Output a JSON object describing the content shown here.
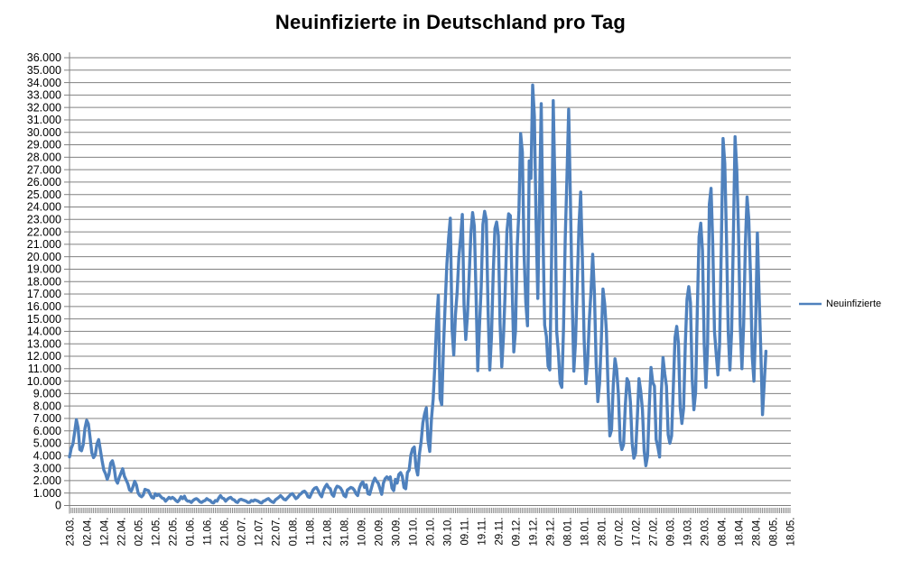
{
  "title": "Neuinfizierte in Deutschland pro Tag",
  "legend": {
    "series_label": "Neuinfizierte"
  },
  "colors": {
    "series": "#4F81BD",
    "gridline": "#808080",
    "axis": "#808080",
    "tick": "#808080",
    "text": "#000000",
    "background": "#FFFFFF"
  },
  "chart_data": {
    "type": "line",
    "title": "Neuinfizierte in Deutschland pro Tag",
    "legend_position": "right",
    "grid": "horizontal",
    "ylim": [
      0,
      36000
    ],
    "y_step": 1000,
    "y_tick_labels": [
      "0",
      "1.000",
      "2.000",
      "3.000",
      "4.000",
      "5.000",
      "6.000",
      "7.000",
      "8.000",
      "9.000",
      "10.000",
      "11.000",
      "12.000",
      "13.000",
      "14.000",
      "15.000",
      "16.000",
      "17.000",
      "18.000",
      "19.000",
      "20.000",
      "21.000",
      "22.000",
      "23.000",
      "24.000",
      "25.000",
      "26.000",
      "27.000",
      "28.000",
      "29.000",
      "30.000",
      "31.000",
      "32.000",
      "33.000",
      "34.000",
      "35.000",
      "36.000"
    ],
    "x_tick_labels": [
      "23.03.",
      "02.04.",
      "12.04.",
      "22.04.",
      "02.05.",
      "12.05.",
      "22.05.",
      "01.06.",
      "11.06.",
      "21.06.",
      "02.07.",
      "12.07.",
      "22.07.",
      "01.08.",
      "11.08.",
      "21.08.",
      "31.08.",
      "10.09.",
      "20.09.",
      "30.09.",
      "10.10.",
      "20.10.",
      "30.10.",
      "09.11.",
      "19.11.",
      "29.11.",
      "09.12.",
      "19.12.",
      "29.12.",
      "08.01.",
      "18.01.",
      "28.01.",
      "07.02.",
      "17.02.",
      "27.02.",
      "09.03.",
      "19.03.",
      "29.03.",
      "08.04.",
      "18.04.",
      "28.04.",
      "08.05.",
      "18.05."
    ],
    "points_per_x_label": 10,
    "series": [
      {
        "name": "Neuinfizierte",
        "color": "#4F81BD",
        "values": [
          3900,
          4600,
          4950,
          5900,
          6900,
          6250,
          4500,
          4400,
          4900,
          6200,
          6850,
          6550,
          5450,
          4250,
          3850,
          4050,
          4950,
          5300,
          4450,
          3600,
          2850,
          2550,
          2100,
          2500,
          3400,
          3600,
          3050,
          2050,
          1800,
          2250,
          2600,
          2950,
          2350,
          2050,
          1750,
          1250,
          1150,
          1500,
          1950,
          1650,
          1000,
          800,
          700,
          850,
          1300,
          1250,
          1200,
          900,
          650,
          600,
          950,
          800,
          900,
          750,
          600,
          550,
          350,
          500,
          650,
          550,
          650,
          550,
          400,
          300,
          450,
          700,
          550,
          750,
          450,
          350,
          350,
          250,
          400,
          500,
          550,
          450,
          300,
          250,
          350,
          400,
          550,
          450,
          400,
          250,
          200,
          400,
          350,
          600,
          800,
          600,
          550,
          350,
          500,
          600,
          650,
          500,
          450,
          300,
          250,
          450,
          500,
          450,
          400,
          350,
          250,
          250,
          400,
          350,
          450,
          400,
          350,
          250,
          200,
          350,
          400,
          500,
          550,
          400,
          300,
          250,
          450,
          550,
          650,
          800,
          650,
          500,
          450,
          600,
          750,
          900,
          950,
          750,
          550,
          650,
          850,
          950,
          1100,
          1150,
          1000,
          700,
          650,
          950,
          1250,
          1400,
          1450,
          1200,
          900,
          700,
          1200,
          1500,
          1700,
          1450,
          1350,
          900,
          750,
          1300,
          1550,
          1500,
          1400,
          1150,
          800,
          700,
          1250,
          1350,
          1450,
          1400,
          1250,
          950,
          800,
          1400,
          1750,
          1900,
          1450,
          1650,
          950,
          900,
          1400,
          1900,
          2200,
          1950,
          1800,
          1350,
          900,
          1800,
          2150,
          2300,
          2150,
          2300,
          1400,
          1200,
          2100,
          1800,
          2500,
          2650,
          2350,
          1450,
          1350,
          2650,
          2850,
          4050,
          4550,
          4700,
          3050,
          2450,
          4150,
          5150,
          6650,
          7350,
          7850,
          5250,
          4350,
          6950,
          8550,
          11300,
          14700,
          16900,
          8600,
          8100,
          12700,
          16200,
          19400,
          21500,
          23100,
          14200,
          12100,
          15350,
          17200,
          19990,
          21500,
          23400,
          16150,
          13350,
          15300,
          18500,
          21900,
          23550,
          22450,
          16950,
          10850,
          14400,
          17550,
          22600,
          23650,
          22950,
          15750,
          10900,
          13550,
          18650,
          22250,
          22800,
          21700,
          14600,
          11150,
          13600,
          17250,
          22050,
          23450,
          23300,
          17750,
          12350,
          14050,
          20800,
          23700,
          29900,
          28400,
          20200,
          16350,
          14450,
          27700,
          26300,
          33800,
          31300,
          22750,
          16650,
          24500,
          32300,
          22000,
          14500,
          13600,
          11200,
          10900,
          19600,
          32550,
          25500,
          14000,
          12300,
          9850,
          9500,
          14300,
          21500,
          26400,
          31850,
          24700,
          16950,
          10800,
          13200,
          17800,
          22500,
          25200,
          19800,
          13400,
          9800,
          11350,
          14800,
          17200,
          20200,
          17100,
          11500,
          8350,
          9800,
          13200,
          17400,
          16200,
          14000,
          9300,
          5600,
          6100,
          9700,
          11800,
          10900,
          8900,
          5200,
          4500,
          4900,
          8000,
          10200,
          9900,
          8300,
          5000,
          3800,
          4200,
          7000,
          10200,
          9200,
          7700,
          4400,
          3200,
          4000,
          8000,
          11100,
          9900,
          9600,
          5300,
          4700,
          3900,
          9000,
          11900,
          10600,
          9600,
          5700,
          5000,
          5600,
          9500,
          13500,
          14400,
          13000,
          7900,
          6600,
          7800,
          13000,
          16600,
          17600,
          16300,
          10200,
          7700,
          9100,
          15800,
          21600,
          22700,
          20500,
          13000,
          9500,
          13000,
          24200,
          25500,
          21000,
          14000,
          12200,
          10500,
          13000,
          21000,
          29500,
          27500,
          21500,
          14000,
          10900,
          14000,
          21500,
          29650,
          27000,
          22000,
          14500,
          11000,
          14500,
          21000,
          24800,
          23000,
          18500,
          12000,
          10000,
          14500,
          21900,
          17000,
          12500,
          7300,
          9800,
          12400
        ]
      }
    ]
  }
}
